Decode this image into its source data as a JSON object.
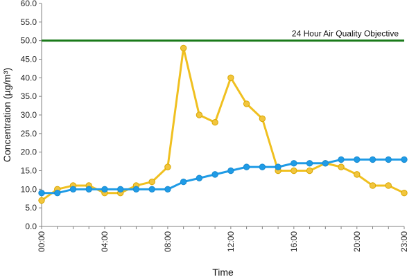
{
  "chart_data": {
    "type": "line",
    "title": "",
    "xlabel": "Time",
    "ylabel": "Concentration (µg/m³)",
    "ylim": [
      0,
      60
    ],
    "xlim": [
      0,
      23
    ],
    "y_ticks": [
      "0.0",
      "5.0",
      "10.0",
      "15.0",
      "20.0",
      "25.0",
      "30.0",
      "35.0",
      "40.0",
      "45.0",
      "50.0",
      "55.0",
      "60.0"
    ],
    "x_ticks": [
      {
        "x": 0,
        "label": "00:00"
      },
      {
        "x": 4,
        "label": "04:00"
      },
      {
        "x": 8,
        "label": "08:00"
      },
      {
        "x": 12,
        "label": "12:00"
      },
      {
        "x": 16,
        "label": "16:00"
      },
      {
        "x": 20,
        "label": "20:00"
      },
      {
        "x": 23,
        "label": "23:00"
      }
    ],
    "x": [
      0,
      1,
      2,
      3,
      4,
      5,
      6,
      7,
      8,
      9,
      10,
      11,
      12,
      13,
      14,
      15,
      16,
      17,
      18,
      19,
      20,
      21,
      22,
      23
    ],
    "grid": false,
    "series": [
      {
        "color": "#f0c020",
        "marker_color": "#f2c53d",
        "values": [
          7,
          10,
          11,
          11,
          9,
          9,
          11,
          12,
          16,
          48,
          30,
          28,
          40,
          33,
          29,
          15,
          15,
          15,
          17,
          16,
          14,
          11,
          11,
          9
        ]
      },
      {
        "color": "#1f9be6",
        "marker_color": "#1f9be6",
        "values": [
          9,
          9,
          10,
          10,
          10,
          10,
          10,
          10,
          10,
          12,
          13,
          14,
          15,
          16,
          16,
          16,
          17,
          17,
          17,
          18,
          18,
          18,
          18,
          18
        ]
      }
    ],
    "reference_line": {
      "value": 50,
      "label": "24 Hour Air Quality Objective",
      "color": "#1a7a1a"
    }
  }
}
